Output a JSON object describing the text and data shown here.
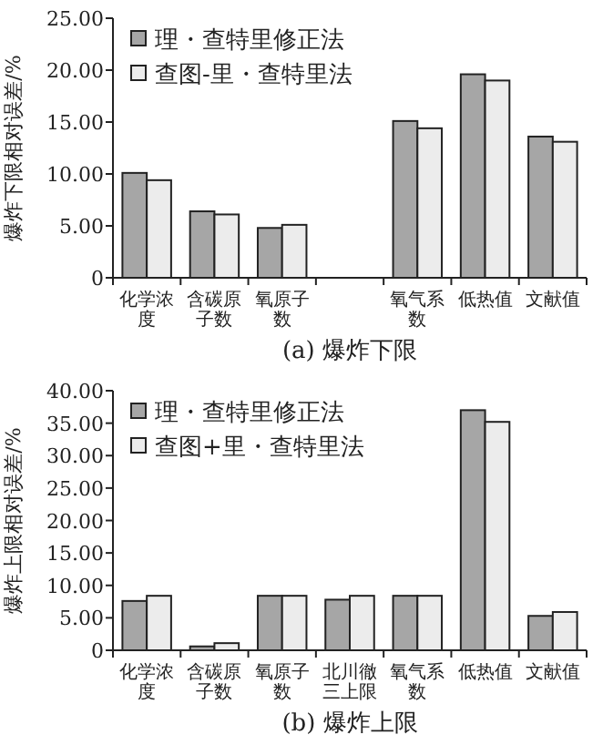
{
  "chart_data": [
    {
      "type": "bar",
      "title": "(a) 爆炸下限",
      "ylabel": "爆炸下限相对误差/%",
      "categories": [
        "化学浓度",
        "含碳原子数",
        "氧原子数",
        null,
        "氧气系数",
        "低热值",
        "文献值"
      ],
      "series": [
        {
          "name": "理・查特里修正法",
          "color": "#a6a6a6",
          "values": [
            10.1,
            6.4,
            4.8,
            null,
            15.1,
            19.6,
            13.6
          ]
        },
        {
          "name": "查图-里・查特里法",
          "color": "#ececec",
          "values": [
            9.4,
            6.1,
            5.1,
            null,
            14.4,
            19.0,
            13.1
          ]
        }
      ],
      "ylim": [
        0,
        25
      ],
      "yticks": [
        {
          "value": 0,
          "label": "0"
        },
        {
          "value": 5,
          "label": "5.00"
        },
        {
          "value": 10,
          "label": "10.00"
        },
        {
          "value": 15,
          "label": "15.00"
        },
        {
          "value": 20,
          "label": "20.00"
        },
        {
          "value": 25,
          "label": "25.00"
        }
      ],
      "legend": "top left",
      "grid": false
    },
    {
      "type": "bar",
      "title": "(b) 爆炸上限",
      "ylabel": "爆炸上限相对误差/%",
      "categories": [
        "化学浓度",
        "含碳原子数",
        "氧原子数",
        "北川徹三上限",
        "氧气系数",
        "低热值",
        "文献值"
      ],
      "series": [
        {
          "name": "理・查特里修正法",
          "color": "#a6a6a6",
          "values": [
            7.6,
            0.6,
            8.4,
            7.8,
            8.4,
            37.0,
            5.3
          ]
        },
        {
          "name": "查图+里・查特里法",
          "color": "#ececec",
          "values": [
            8.4,
            1.1,
            8.4,
            8.4,
            8.4,
            35.2,
            5.9
          ]
        }
      ],
      "ylim": [
        0,
        40
      ],
      "yticks": [
        {
          "value": 0,
          "label": "0"
        },
        {
          "value": 5,
          "label": "5.00"
        },
        {
          "value": 10,
          "label": "10.00"
        },
        {
          "value": 15,
          "label": "15.00"
        },
        {
          "value": 20,
          "label": "20.00"
        },
        {
          "value": 25,
          "label": "25.00"
        },
        {
          "value": 30,
          "label": "30.00"
        },
        {
          "value": 35,
          "label": "35.00"
        },
        {
          "value": 40,
          "label": "40.00"
        }
      ],
      "legend": "top left",
      "grid": false
    }
  ]
}
